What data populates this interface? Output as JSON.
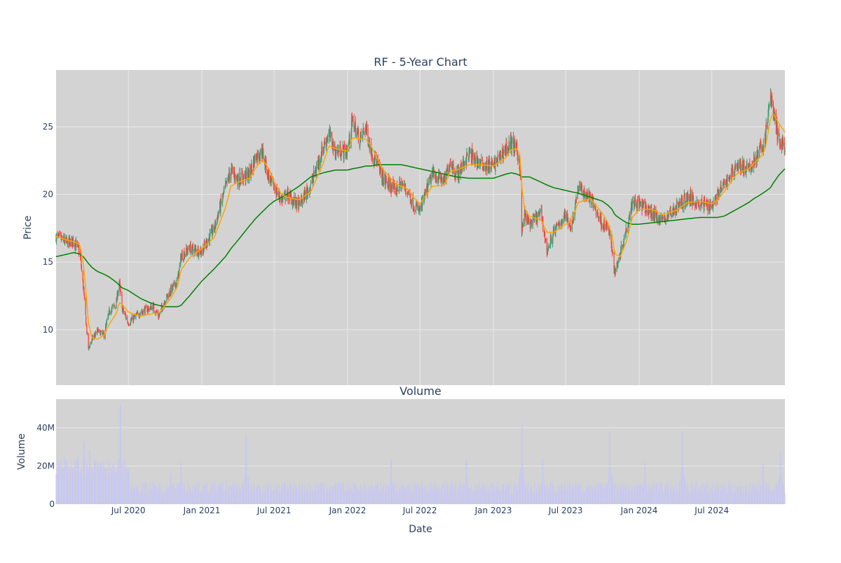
{
  "chart_data": [
    {
      "type": "candlestick",
      "title": "RF - 5-Year Chart",
      "ylabel": "Price",
      "xlabel": "",
      "xlim": [
        "2020-01-02",
        "2024-12-31"
      ],
      "ylim": [
        5.9,
        29.2
      ],
      "grid": true,
      "legend": "none",
      "yticks": [
        10,
        15,
        20,
        25
      ],
      "xticks": [
        {
          "date": "2020-07-01",
          "label": "Jul 2020"
        },
        {
          "date": "2021-01-01",
          "label": "Jan 2021"
        },
        {
          "date": "2021-07-01",
          "label": "Jul 2021"
        },
        {
          "date": "2022-01-01",
          "label": "Jan 2022"
        },
        {
          "date": "2022-07-01",
          "label": "Jul 2022"
        },
        {
          "date": "2023-01-01",
          "label": "Jan 2023"
        },
        {
          "date": "2023-07-01",
          "label": "Jul 2023"
        },
        {
          "date": "2024-01-01",
          "label": "Jan 2024"
        },
        {
          "date": "2024-07-01",
          "label": "Jul 2024"
        }
      ],
      "price_series": {
        "dates": [
          "2020-01-02",
          "2020-02-01",
          "2020-02-15",
          "2020-03-01",
          "2020-03-10",
          "2020-03-18",
          "2020-03-23",
          "2020-04-01",
          "2020-04-15",
          "2020-05-01",
          "2020-05-14",
          "2020-06-01",
          "2020-06-08",
          "2020-06-15",
          "2020-07-01",
          "2020-08-01",
          "2020-09-01",
          "2020-09-15",
          "2020-10-01",
          "2020-10-15",
          "2020-11-01",
          "2020-11-10",
          "2020-12-01",
          "2021-01-01",
          "2021-02-01",
          "2021-03-01",
          "2021-03-15",
          "2021-04-01",
          "2021-05-01",
          "2021-05-15",
          "2021-06-01",
          "2021-06-18",
          "2021-07-01",
          "2021-07-20",
          "2021-08-01",
          "2021-09-01",
          "2021-10-01",
          "2021-11-01",
          "2021-11-15",
          "2021-12-01",
          "2022-01-01",
          "2022-01-13",
          "2022-02-01",
          "2022-02-15",
          "2022-03-01",
          "2022-03-15",
          "2022-04-01",
          "2022-05-01",
          "2022-05-15",
          "2022-06-01",
          "2022-06-15",
          "2022-07-01",
          "2022-08-01",
          "2022-09-01",
          "2022-09-15",
          "2022-10-01",
          "2022-11-01",
          "2022-12-01",
          "2023-01-01",
          "2023-02-01",
          "2023-02-15",
          "2023-03-01",
          "2023-03-09",
          "2023-03-13",
          "2023-03-20",
          "2023-04-01",
          "2023-05-01",
          "2023-05-15",
          "2023-06-01",
          "2023-07-01",
          "2023-07-15",
          "2023-08-01",
          "2023-09-01",
          "2023-10-01",
          "2023-10-15",
          "2023-10-25",
          "2023-11-01",
          "2023-11-15",
          "2023-12-01",
          "2023-12-15",
          "2024-01-01",
          "2024-02-01",
          "2024-03-01",
          "2024-04-01",
          "2024-05-01",
          "2024-06-01",
          "2024-07-01",
          "2024-07-15",
          "2024-08-01",
          "2024-09-01",
          "2024-10-01",
          "2024-10-15",
          "2024-11-01",
          "2024-11-11",
          "2024-11-25",
          "2024-12-01",
          "2024-12-15",
          "2024-12-31"
        ],
        "close": [
          16.9,
          16.4,
          16.6,
          15.8,
          13.2,
          10.2,
          8.6,
          9.3,
          9.9,
          9.6,
          11.3,
          12.0,
          13.6,
          11.6,
          10.5,
          11.3,
          11.7,
          11.0,
          12.2,
          12.9,
          13.6,
          15.4,
          16.0,
          15.8,
          17.5,
          20.5,
          21.8,
          21.1,
          21.5,
          22.8,
          23.2,
          21.2,
          20.5,
          19.6,
          20.0,
          19.2,
          20.7,
          23.5,
          24.5,
          23.2,
          23.2,
          25.4,
          24.0,
          25.0,
          23.2,
          22.4,
          21.1,
          20.3,
          20.8,
          20.2,
          19.2,
          18.8,
          21.5,
          21.0,
          22.5,
          21.4,
          23.0,
          22.2,
          22.1,
          23.4,
          23.8,
          23.2,
          22.0,
          17.2,
          18.5,
          17.8,
          18.6,
          15.8,
          17.2,
          18.5,
          17.6,
          20.5,
          19.7,
          17.8,
          17.6,
          16.0,
          14.2,
          15.7,
          17.6,
          19.5,
          19.3,
          18.6,
          18.1,
          19.0,
          19.8,
          19.3,
          19.2,
          20.0,
          20.7,
          22.2,
          21.8,
          22.5,
          23.4,
          24.0,
          27.4,
          26.3,
          24.0,
          23.5
        ],
        "ma20": [
          16.9,
          16.6,
          16.5,
          16.3,
          15.0,
          12.5,
          10.5,
          9.4,
          9.3,
          9.6,
          10.4,
          11.2,
          12.0,
          11.9,
          11.3,
          11.0,
          11.2,
          11.2,
          11.8,
          12.3,
          13.2,
          14.4,
          15.3,
          16.0,
          16.8,
          19.0,
          20.6,
          20.9,
          21.2,
          21.9,
          22.6,
          21.9,
          20.9,
          20.0,
          19.8,
          19.6,
          20.2,
          22.3,
          23.6,
          23.4,
          23.2,
          24.2,
          24.1,
          24.1,
          23.6,
          22.7,
          21.8,
          20.8,
          20.6,
          20.4,
          19.8,
          19.3,
          20.6,
          20.7,
          21.7,
          21.8,
          22.2,
          22.2,
          22.1,
          22.7,
          23.3,
          23.4,
          22.9,
          20.6,
          19.0,
          18.4,
          18.1,
          17.2,
          17.2,
          17.8,
          18.0,
          19.4,
          19.7,
          18.6,
          17.9,
          17.0,
          15.6,
          15.4,
          16.6,
          18.3,
          18.9,
          18.9,
          18.5,
          18.8,
          19.4,
          19.5,
          19.3,
          19.6,
          20.2,
          21.5,
          21.9,
          22.3,
          22.8,
          23.3,
          25.6,
          26.0,
          25.3,
          24.6
        ],
        "ma200": [
          15.4,
          15.6,
          15.7,
          15.6,
          15.4,
          15.1,
          14.9,
          14.6,
          14.3,
          14.1,
          13.9,
          13.5,
          13.3,
          13.1,
          12.9,
          12.3,
          11.9,
          11.8,
          11.7,
          11.7,
          11.7,
          11.8,
          12.5,
          13.6,
          14.5,
          15.4,
          16.0,
          16.6,
          17.7,
          18.2,
          18.7,
          19.2,
          19.5,
          19.8,
          20.0,
          20.6,
          21.3,
          21.6,
          21.7,
          21.8,
          21.8,
          21.9,
          22.0,
          22.1,
          22.1,
          22.2,
          22.2,
          22.2,
          22.2,
          22.1,
          22.0,
          21.9,
          21.7,
          21.5,
          21.4,
          21.3,
          21.2,
          21.2,
          21.2,
          21.5,
          21.6,
          21.5,
          21.4,
          21.3,
          21.3,
          21.3,
          20.9,
          20.7,
          20.5,
          20.3,
          20.2,
          20.1,
          19.8,
          19.5,
          19.2,
          18.9,
          18.5,
          18.2,
          17.9,
          17.8,
          17.8,
          17.9,
          18.0,
          18.1,
          18.2,
          18.3,
          18.3,
          18.3,
          18.4,
          18.9,
          19.4,
          19.7,
          20.0,
          20.2,
          20.5,
          20.8,
          21.4,
          21.9
        ]
      }
    },
    {
      "type": "bar",
      "title": "Volume",
      "xlabel": "Date",
      "ylabel": "Volume",
      "ylim": [
        0,
        55
      ],
      "yticks": [
        {
          "value": 0,
          "label": "0"
        },
        {
          "value": 20,
          "label": "20M"
        },
        {
          "value": 40,
          "label": "40M"
        }
      ],
      "xticks": [
        {
          "date": "2020-07-01",
          "label": "Jul 2020"
        },
        {
          "date": "2021-01-01",
          "label": "Jan 2021"
        },
        {
          "date": "2021-07-01",
          "label": "Jul 2021"
        },
        {
          "date": "2022-01-01",
          "label": "Jan 2022"
        },
        {
          "date": "2022-07-01",
          "label": "Jul 2022"
        },
        {
          "date": "2023-01-01",
          "label": "Jan 2023"
        },
        {
          "date": "2023-07-01",
          "label": "Jul 2023"
        },
        {
          "date": "2024-01-01",
          "label": "Jan 2024"
        },
        {
          "date": "2024-07-01",
          "label": "Jul 2024"
        }
      ],
      "spikes": [
        {
          "date": "2020-02-25",
          "value": 25
        },
        {
          "date": "2020-03-12",
          "value": 33
        },
        {
          "date": "2020-03-26",
          "value": 28
        },
        {
          "date": "2020-04-10",
          "value": 23
        },
        {
          "date": "2020-06-11",
          "value": 52
        },
        {
          "date": "2020-10-15",
          "value": 16
        },
        {
          "date": "2020-11-09",
          "value": 22
        },
        {
          "date": "2021-04-22",
          "value": 36
        },
        {
          "date": "2022-04-20",
          "value": 23
        },
        {
          "date": "2022-10-25",
          "value": 24
        },
        {
          "date": "2023-03-13",
          "value": 42
        },
        {
          "date": "2023-05-05",
          "value": 24
        },
        {
          "date": "2023-10-20",
          "value": 38
        },
        {
          "date": "2024-01-15",
          "value": 22
        },
        {
          "date": "2024-04-19",
          "value": 38
        },
        {
          "date": "2024-11-06",
          "value": 21
        },
        {
          "date": "2024-12-20",
          "value": 28
        }
      ]
    }
  ],
  "colors": {
    "plot_bg": "#d3d3d3",
    "grid": "#e9e9e9",
    "up": "#3d9970",
    "down": "#ff4136",
    "ma20": "#ffa500",
    "ma200": "#008000",
    "volume": "#c8c8f0",
    "text": "#2a3f5f"
  }
}
